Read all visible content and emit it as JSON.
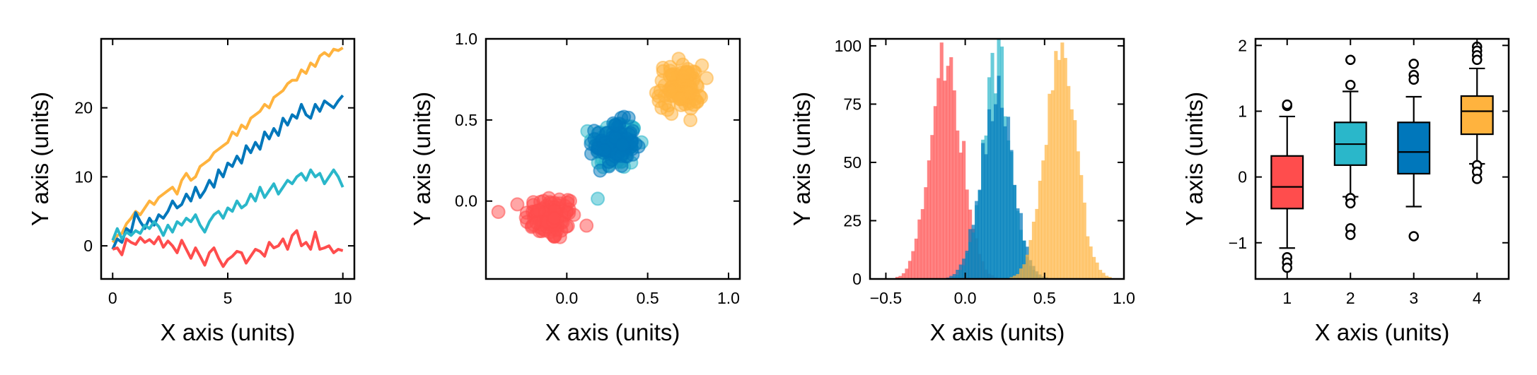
{
  "colors": {
    "red": "#ff4d4d",
    "cyan": "#2ab7ca",
    "blue": "#0077bb",
    "orange": "#ffb33e"
  },
  "chart_data": [
    {
      "type": "line",
      "title": "",
      "xlabel": "X axis (units)",
      "ylabel": "Y axis (units)",
      "xlim": [
        -0.5,
        10.5
      ],
      "ylim": [
        -4.8,
        30
      ],
      "xticks": [
        0,
        5,
        10
      ],
      "yticks": [
        0,
        10,
        20
      ],
      "grid": false,
      "x": [
        0,
        0.2,
        0.4,
        0.6,
        0.8,
        1.0,
        1.2,
        1.4,
        1.6,
        1.8,
        2.0,
        2.2,
        2.4,
        2.6,
        2.8,
        3.0,
        3.2,
        3.4,
        3.6,
        3.8,
        4.0,
        4.2,
        4.4,
        4.6,
        4.8,
        5.0,
        5.2,
        5.4,
        5.6,
        5.8,
        6.0,
        6.2,
        6.4,
        6.6,
        6.8,
        7.0,
        7.2,
        7.4,
        7.6,
        7.8,
        8.0,
        8.2,
        8.4,
        8.6,
        8.8,
        9.0,
        9.2,
        9.4,
        9.6,
        9.8,
        10.0
      ],
      "series": [
        {
          "color": "#ffb33e",
          "values": [
            0.5,
            1.5,
            1.8,
            3.2,
            4.0,
            5.0,
            4.5,
            5.5,
            6.5,
            6.0,
            7.0,
            7.5,
            8.0,
            8.5,
            7.5,
            9.5,
            10.5,
            9.5,
            10.0,
            11.5,
            12.0,
            12.5,
            13.5,
            14.0,
            14.5,
            15.0,
            16.5,
            16.0,
            17.5,
            17.0,
            18.5,
            19.0,
            19.5,
            20.5,
            20.0,
            21.5,
            22.0,
            22.5,
            23.5,
            24.0,
            24.0,
            25.5,
            25.0,
            26.5,
            26.0,
            27.5,
            28.0,
            27.5,
            28.5,
            28.3,
            28.7
          ]
        },
        {
          "color": "#0077bb",
          "values": [
            -0.5,
            1.0,
            0.5,
            2.5,
            2.0,
            4.8,
            3.5,
            2.5,
            4.0,
            3.0,
            4.5,
            4.0,
            5.0,
            6.5,
            5.5,
            6.0,
            7.5,
            6.5,
            8.5,
            7.0,
            8.0,
            9.5,
            8.5,
            11.0,
            10.0,
            12.0,
            11.5,
            13.0,
            12.0,
            14.5,
            13.5,
            15.0,
            14.0,
            16.5,
            15.5,
            17.0,
            16.0,
            18.5,
            17.5,
            19.0,
            18.5,
            20.5,
            19.0,
            18.5,
            20.5,
            19.5,
            21.0,
            20.5,
            20.0,
            21.0,
            21.8
          ]
        },
        {
          "color": "#2ab7ca",
          "values": [
            0.8,
            2.5,
            1.0,
            2.0,
            1.5,
            2.2,
            1.8,
            3.0,
            2.5,
            3.5,
            2.8,
            1.5,
            3.0,
            2.0,
            3.5,
            3.0,
            4.0,
            3.5,
            4.5,
            3.0,
            2.0,
            3.5,
            4.5,
            5.0,
            4.0,
            5.5,
            5.0,
            6.5,
            5.5,
            6.0,
            7.5,
            6.5,
            8.5,
            7.0,
            8.0,
            9.0,
            7.5,
            8.5,
            9.5,
            9.0,
            10.0,
            10.5,
            9.5,
            11.0,
            10.0,
            10.5,
            9.0,
            10.0,
            11.0,
            10.0,
            8.5
          ]
        },
        {
          "color": "#ff4d4d",
          "values": [
            -0.5,
            -0.3,
            -1.3,
            1.0,
            0.5,
            0.2,
            1.2,
            0.5,
            0.9,
            0.3,
            1.3,
            -0.2,
            0.7,
            0.0,
            -1.0,
            0.8,
            -0.5,
            -1.8,
            -0.3,
            -1.5,
            -2.8,
            -1.0,
            -0.3,
            -1.8,
            -3.0,
            -2.0,
            -1.5,
            -0.8,
            -1.0,
            -2.5,
            -1.5,
            -0.5,
            -0.8,
            -1.5,
            0.5,
            -0.3,
            0.0,
            1.0,
            -0.5,
            1.5,
            2.2,
            0.0,
            0.5,
            -0.5,
            2.0,
            -0.5,
            -0.3,
            0.0,
            -1.0,
            -0.5,
            -0.7
          ]
        }
      ]
    },
    {
      "type": "scatter",
      "title": "",
      "xlabel": "X axis (units)",
      "ylabel": "Y axis (units)",
      "xlim": [
        -0.5,
        1.07
      ],
      "ylim": [
        -0.48,
        1.0
      ],
      "xticks": [
        0.0,
        0.5,
        1.0
      ],
      "xtick_labels": [
        "0.0",
        "0.5",
        "1.0"
      ],
      "yticks": [
        0.0,
        0.5,
        1.0
      ],
      "ytick_labels": [
        "0.0",
        "0.5",
        "1.0"
      ],
      "grid": false,
      "clusters": [
        {
          "color": "#ff4d4d",
          "center": [
            -0.1,
            -0.1
          ],
          "spread": [
            0.08,
            0.07
          ],
          "n": 100
        },
        {
          "color": "#2ab7ca",
          "center": [
            0.3,
            0.35
          ],
          "spread": [
            0.07,
            0.08
          ],
          "n": 100
        },
        {
          "color": "#0077bb",
          "center": [
            0.3,
            0.35
          ],
          "spread": [
            0.06,
            0.07
          ],
          "n": 100
        },
        {
          "color": "#ffb33e",
          "center": [
            0.7,
            0.7
          ],
          "spread": [
            0.07,
            0.07
          ],
          "n": 100
        }
      ]
    },
    {
      "type": "histogram",
      "title": "",
      "xlabel": "X axis (units)",
      "ylabel": "Y axis (units)",
      "xlim": [
        -0.6,
        1.0
      ],
      "ylim": [
        0,
        103
      ],
      "xticks": [
        -0.5,
        0.0,
        0.5,
        1.0
      ],
      "xtick_labels": [
        "−0.5",
        "0.0",
        "0.5",
        "1.0"
      ],
      "yticks": [
        0,
        25,
        50,
        75,
        100
      ],
      "grid": false,
      "distributions": [
        {
          "color": "#ff4d4d",
          "mean": -0.12,
          "sd": 0.1,
          "peak": 95
        },
        {
          "color": "#2ab7ca",
          "mean": 0.2,
          "sd": 0.09,
          "peak": 92
        },
        {
          "color": "#0077bb",
          "mean": 0.2,
          "sd": 0.1,
          "peak": 80
        },
        {
          "color": "#ffb33e",
          "mean": 0.6,
          "sd": 0.1,
          "peak": 91
        }
      ]
    },
    {
      "type": "box",
      "title": "",
      "xlabel": "X axis (units)",
      "ylabel": "Y axis (units)",
      "xlim": [
        0.5,
        4.5
      ],
      "ylim": [
        -1.55,
        2.1
      ],
      "xticks": [
        1,
        2,
        3,
        4
      ],
      "yticks": [
        -1,
        0,
        1,
        2
      ],
      "ytick_labels": [
        "−1",
        "0",
        "1",
        "2"
      ],
      "grid": false,
      "boxes": [
        {
          "label": "1",
          "color": "#ff4d4d",
          "q1": -0.48,
          "median": -0.15,
          "q3": 0.32,
          "whisker_low": -1.08,
          "whisker_high": 0.92,
          "outliers": [
            1.08,
            1.1,
            -1.22,
            -1.3,
            -1.38
          ]
        },
        {
          "label": "2",
          "color": "#2ab7ca",
          "q1": 0.18,
          "median": 0.5,
          "q3": 0.83,
          "whisker_low": -0.3,
          "whisker_high": 1.3,
          "outliers": [
            1.78,
            1.4,
            -0.32,
            -0.4,
            -0.78,
            -0.88
          ]
        },
        {
          "label": "3",
          "color": "#0077bb",
          "q1": 0.05,
          "median": 0.38,
          "q3": 0.83,
          "whisker_low": -0.45,
          "whisker_high": 1.22,
          "outliers": [
            1.72,
            1.55,
            1.48,
            -0.9
          ]
        },
        {
          "label": "4",
          "color": "#ffb33e",
          "q1": 0.65,
          "median": 1.0,
          "q3": 1.23,
          "whisker_low": 0.2,
          "whisker_high": 1.65,
          "outliers": [
            1.98,
            1.92,
            1.85,
            1.78,
            0.18,
            0.08,
            -0.03
          ]
        }
      ]
    }
  ]
}
